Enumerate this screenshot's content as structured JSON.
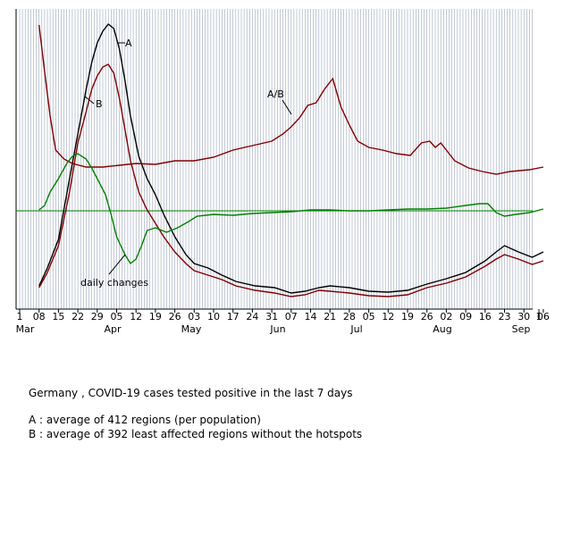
{
  "chart_data": {
    "type": "line",
    "title": "",
    "xlabel": "",
    "ylabel": "",
    "x_tick_labels": [
      "1",
      "08",
      "15",
      "22",
      "29",
      "05",
      "12",
      "19",
      "26",
      "03",
      "10",
      "17",
      "24",
      "31",
      "07",
      "14",
      "21",
      "28",
      "05",
      "12",
      "19",
      "26",
      "02",
      "09",
      "16",
      "23",
      "30",
      "06",
      "1"
    ],
    "month_labels": [
      "Mar",
      "Apr",
      "May",
      "Jun",
      "Jul",
      "Aug",
      "Sep"
    ],
    "grid": "vertical daily lines",
    "series": [
      {
        "name": "A",
        "color": "#000000",
        "points": [
          [
            "Mar 08",
            320
          ],
          [
            "Mar 11",
            300
          ],
          [
            "Mar 15",
            268
          ],
          [
            "Mar 19",
            200
          ],
          [
            "Mar 22",
            150
          ],
          [
            "Mar 25",
            100
          ],
          [
            "Mar 27",
            70
          ],
          [
            "Mar 29",
            48
          ],
          [
            "Mar 31",
            35
          ],
          [
            "Apr 02",
            27
          ],
          [
            "Apr 04",
            32
          ],
          [
            "Apr 06",
            55
          ],
          [
            "Apr 08",
            90
          ],
          [
            "Apr 10",
            130
          ],
          [
            "Apr 13",
            175
          ],
          [
            "Apr 16",
            200
          ],
          [
            "Apr 19",
            218
          ],
          [
            "Apr 22",
            240
          ],
          [
            "Apr 26",
            265
          ],
          [
            "Apr 30",
            285
          ],
          [
            "May 03",
            295
          ],
          [
            "May 08",
            300
          ],
          [
            "May 13",
            308
          ],
          [
            "May 18",
            315
          ],
          [
            "May 25",
            320
          ],
          [
            "Jun 01",
            322
          ],
          [
            "Jun 07",
            328
          ],
          [
            "Jun 12",
            326
          ],
          [
            "Jun 17",
            322
          ],
          [
            "Jun 21",
            320
          ],
          [
            "Jun 28",
            322
          ],
          [
            "Jul 05",
            326
          ],
          [
            "Jul 12",
            327
          ],
          [
            "Jul 19",
            325
          ],
          [
            "Jul 26",
            318
          ],
          [
            "Aug 02",
            312
          ],
          [
            "Aug 09",
            305
          ],
          [
            "Aug 16",
            292
          ],
          [
            "Aug 20",
            282
          ],
          [
            "Aug 23",
            275
          ],
          [
            "Aug 28",
            282
          ],
          [
            "Sep 02",
            288
          ],
          [
            "Sep 06",
            282
          ]
        ]
      },
      {
        "name": "B",
        "color": "#800000",
        "points": [
          [
            "Mar 08",
            322
          ],
          [
            "Mar 11",
            305
          ],
          [
            "Mar 15",
            275
          ],
          [
            "Mar 19",
            215
          ],
          [
            "Mar 22",
            160
          ],
          [
            "Mar 25",
            125
          ],
          [
            "Mar 27",
            100
          ],
          [
            "Mar 29",
            85
          ],
          [
            "Mar 31",
            75
          ],
          [
            "Apr 02",
            72
          ],
          [
            "Apr 04",
            82
          ],
          [
            "Apr 06",
            110
          ],
          [
            "Apr 08",
            145
          ],
          [
            "Apr 10",
            180
          ],
          [
            "Apr 13",
            215
          ],
          [
            "Apr 16",
            235
          ],
          [
            "Apr 19",
            250
          ],
          [
            "Apr 22",
            265
          ],
          [
            "Apr 26",
            282
          ],
          [
            "Apr 30",
            295
          ],
          [
            "May 03",
            303
          ],
          [
            "May 08",
            308
          ],
          [
            "May 13",
            313
          ],
          [
            "May 18",
            320
          ],
          [
            "May 25",
            325
          ],
          [
            "Jun 01",
            328
          ],
          [
            "Jun 07",
            332
          ],
          [
            "Jun 12",
            330
          ],
          [
            "Jun 17",
            325
          ],
          [
            "Jun 21",
            326
          ],
          [
            "Jun 28",
            328
          ],
          [
            "Jul 05",
            331
          ],
          [
            "Jul 12",
            332
          ],
          [
            "Jul 19",
            330
          ],
          [
            "Jul 26",
            322
          ],
          [
            "Aug 02",
            317
          ],
          [
            "Aug 09",
            310
          ],
          [
            "Aug 16",
            298
          ],
          [
            "Aug 20",
            290
          ],
          [
            "Aug 23",
            285
          ],
          [
            "Aug 28",
            290
          ],
          [
            "Sep 02",
            296
          ],
          [
            "Sep 06",
            292
          ]
        ]
      },
      {
        "name": "A/B",
        "color": "#800000",
        "points": [
          [
            "Mar 08",
            28
          ],
          [
            "Mar 10",
            80
          ],
          [
            "Mar 12",
            130
          ],
          [
            "Mar 14",
            168
          ],
          [
            "Mar 17",
            178
          ],
          [
            "Mar 20",
            183
          ],
          [
            "Mar 25",
            187
          ],
          [
            "Mar 31",
            187
          ],
          [
            "Apr 06",
            185
          ],
          [
            "Apr 12",
            183
          ],
          [
            "Apr 19",
            184
          ],
          [
            "Apr 26",
            180
          ],
          [
            "May 03",
            180
          ],
          [
            "May 10",
            176
          ],
          [
            "May 17",
            168
          ],
          [
            "May 24",
            163
          ],
          [
            "May 31",
            158
          ],
          [
            "Jun 04",
            150
          ],
          [
            "Jun 07",
            142
          ],
          [
            "Jun 10",
            132
          ],
          [
            "Jun 13",
            118
          ],
          [
            "Jun 16",
            115
          ],
          [
            "Jun 19",
            100
          ],
          [
            "Jun 22",
            88
          ],
          [
            "Jun 25",
            120
          ],
          [
            "Jun 28",
            140
          ],
          [
            "Jul 01",
            158
          ],
          [
            "Jul 05",
            165
          ],
          [
            "Jul 10",
            168
          ],
          [
            "Jul 15",
            172
          ],
          [
            "Jul 20",
            174
          ],
          [
            "Jul 24",
            160
          ],
          [
            "Jul 27",
            158
          ],
          [
            "Jul 29",
            165
          ],
          [
            "Jul 31",
            160
          ],
          [
            "Aug 02",
            168
          ],
          [
            "Aug 05",
            180
          ],
          [
            "Aug 10",
            188
          ],
          [
            "Aug 15",
            192
          ],
          [
            "Aug 20",
            195
          ],
          [
            "Aug 25",
            192
          ],
          [
            "Sep 01",
            190
          ],
          [
            "Sep 06",
            187
          ]
        ]
      },
      {
        "name": "daily changes",
        "color": "#008000",
        "points": [
          [
            "Mar 08",
            235
          ],
          [
            "Mar 10",
            230
          ],
          [
            "Mar 12",
            215
          ],
          [
            "Mar 15",
            200
          ],
          [
            "Mar 18",
            183
          ],
          [
            "Mar 20",
            175
          ],
          [
            "Mar 22",
            172
          ],
          [
            "Mar 25",
            178
          ],
          [
            "Mar 27",
            188
          ],
          [
            "Mar 29",
            200
          ],
          [
            "Apr 01",
            218
          ],
          [
            "Apr 03",
            240
          ],
          [
            "Apr 05",
            265
          ],
          [
            "Apr 08",
            285
          ],
          [
            "Apr 10",
            295
          ],
          [
            "Apr 12",
            290
          ],
          [
            "Apr 14",
            275
          ],
          [
            "Apr 16",
            258
          ],
          [
            "Apr 19",
            255
          ],
          [
            "Apr 23",
            260
          ],
          [
            "Apr 27",
            255
          ],
          [
            "May 01",
            248
          ],
          [
            "May 04",
            242
          ],
          [
            "May 10",
            240
          ],
          [
            "May 17",
            241
          ],
          [
            "May 24",
            239
          ],
          [
            "May 31",
            238
          ],
          [
            "Jun 07",
            237
          ],
          [
            "Jun 14",
            235
          ],
          [
            "Jun 21",
            235
          ],
          [
            "Jun 28",
            236
          ],
          [
            "Jul 05",
            236
          ],
          [
            "Jul 12",
            235
          ],
          [
            "Jul 19",
            234
          ],
          [
            "Jul 26",
            234
          ],
          [
            "Aug 02",
            233
          ],
          [
            "Aug 09",
            230
          ],
          [
            "Aug 14",
            228
          ],
          [
            "Aug 17",
            228
          ],
          [
            "Aug 20",
            238
          ],
          [
            "Aug 23",
            242
          ],
          [
            "Aug 27",
            240
          ],
          [
            "Sep 01",
            238
          ],
          [
            "Sep 06",
            234
          ]
        ]
      }
    ],
    "reference_line": {
      "name": "zero line for daily changes",
      "color": "#008000",
      "value": 236
    },
    "annotations": [
      {
        "text": "A",
        "series": "A"
      },
      {
        "text": "B",
        "series": "B"
      },
      {
        "text": "A/B",
        "series": "A/B"
      },
      {
        "text": "daily changes",
        "series": "daily changes"
      }
    ],
    "y_direction": "pixel-like, smaller is higher"
  },
  "caption": {
    "line1": "Germany , COVID-19 cases tested positive in the last 7 days",
    "lineA": "A : average of 412 regions (per population)",
    "lineB": "B : average of 392 least affected regions  without the hotspots"
  }
}
